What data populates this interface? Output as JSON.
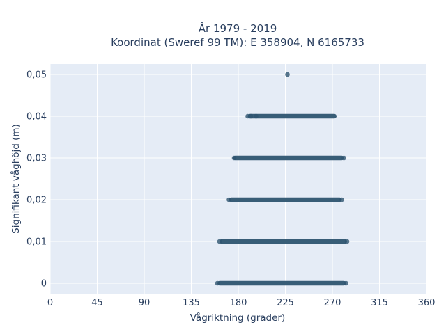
{
  "chart_data": {
    "type": "scatter",
    "title_line1": "År 1979 - 2019",
    "title_line2": "Koordinat (Sweref 99 TM): E 358904, N 6165733",
    "xlabel": "Vågriktning (grader)",
    "ylabel": "Signifikant våghöjd (m)",
    "xlim": [
      0,
      360
    ],
    "ylim": [
      -0.0025,
      0.0525
    ],
    "x_ticks": [
      0,
      45,
      90,
      135,
      180,
      225,
      270,
      315,
      360
    ],
    "x_tick_labels": [
      "0",
      "45",
      "90",
      "135",
      "180",
      "225",
      "270",
      "315",
      "360"
    ],
    "y_ticks": [
      0,
      0.01,
      0.02,
      0.03,
      0.04,
      0.05
    ],
    "y_tick_labels": [
      "0",
      "0,01",
      "0,02",
      "0,03",
      "0,04",
      "0,05"
    ],
    "grid": true,
    "marker_color": "#2e5570",
    "background_color": "#e5ecf6",
    "series": [
      {
        "bands": [
          {
            "y": 0,
            "x_range": [
              160,
              283
            ]
          },
          {
            "y": 0.01,
            "x_range": [
              162,
              284
            ]
          },
          {
            "y": 0.02,
            "x_range": [
              171,
              279
            ]
          },
          {
            "y": 0.03,
            "x_range": [
              175,
              281
            ]
          },
          {
            "y": 0.04,
            "x_range": [
              189,
              274
            ]
          }
        ],
        "points": [
          {
            "x": 227,
            "y": 0.05
          },
          {
            "x": 189,
            "y": 0.04
          },
          {
            "x": 192,
            "y": 0.04
          },
          {
            "x": 197,
            "y": 0.04
          },
          {
            "x": 176,
            "y": 0.03
          },
          {
            "x": 281,
            "y": 0.03
          },
          {
            "x": 171,
            "y": 0.02
          },
          {
            "x": 279,
            "y": 0.02
          },
          {
            "x": 162,
            "y": 0.01
          },
          {
            "x": 284,
            "y": 0.01
          },
          {
            "x": 160,
            "y": 0
          },
          {
            "x": 283,
            "y": 0
          }
        ]
      }
    ]
  }
}
